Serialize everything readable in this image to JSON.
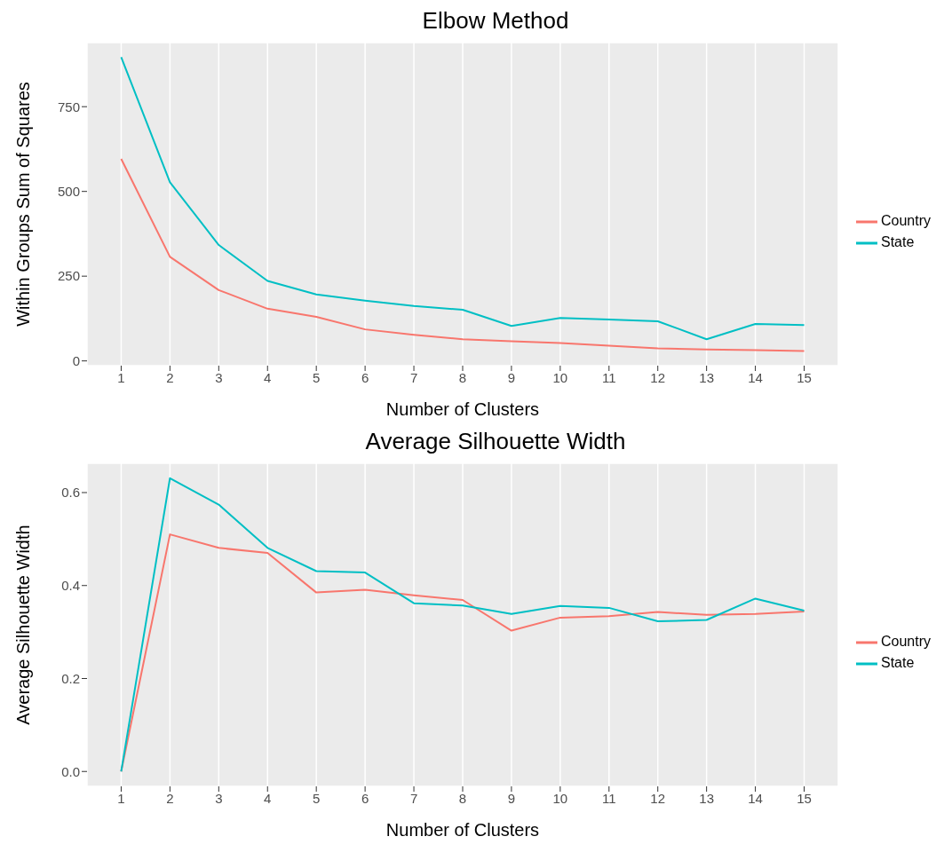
{
  "chart_data": [
    {
      "type": "line",
      "title": "Elbow Method",
      "xlabel": "Number of Clusters",
      "ylabel": "Within Groups Sum of Squares",
      "x": [
        1,
        2,
        3,
        4,
        5,
        6,
        7,
        8,
        9,
        10,
        11,
        12,
        13,
        14,
        15
      ],
      "xlim": [
        0.3,
        15.7
      ],
      "xticks": [
        1,
        2,
        3,
        4,
        5,
        6,
        7,
        8,
        9,
        10,
        11,
        12,
        13,
        14,
        15
      ],
      "ylim": [
        -14,
        939
      ],
      "yticks": [
        0,
        250,
        500,
        750
      ],
      "grid": true,
      "legend": "right",
      "series": [
        {
          "name": "Country",
          "color": "#f8766d",
          "values": [
            596,
            307,
            209,
            154,
            130,
            93,
            77,
            64,
            58,
            53,
            45,
            37,
            34,
            32,
            29
          ]
        },
        {
          "name": "State",
          "color": "#00bfc4",
          "values": [
            896,
            527,
            342,
            236,
            196,
            178,
            162,
            151,
            103,
            127,
            122,
            117,
            64,
            109,
            106
          ]
        }
      ]
    },
    {
      "type": "line",
      "title": "Average Silhouette Width",
      "xlabel": "Number of Clusters",
      "ylabel": "Average Silhouette Width",
      "x": [
        1,
        2,
        3,
        4,
        5,
        6,
        7,
        8,
        9,
        10,
        11,
        12,
        13,
        14,
        15
      ],
      "xlim": [
        0.3,
        15.7
      ],
      "xticks": [
        1,
        2,
        3,
        4,
        5,
        6,
        7,
        8,
        9,
        10,
        11,
        12,
        13,
        14,
        15
      ],
      "ylim": [
        -0.032,
        0.663
      ],
      "yticks": [
        {
          "value": 0,
          "label": "0.0"
        },
        {
          "value": 0.2,
          "label": "0.2"
        },
        {
          "value": 0.4,
          "label": "0.4"
        },
        {
          "value": 0.6,
          "label": "0.6"
        }
      ],
      "grid": true,
      "legend": "right",
      "series": [
        {
          "name": "Country",
          "color": "#f8766d",
          "values": [
            0,
            0.51,
            0.481,
            0.47,
            0.385,
            0.391,
            0.379,
            0.369,
            0.303,
            0.331,
            0.334,
            0.343,
            0.337,
            0.339,
            0.344
          ]
        },
        {
          "name": "State",
          "color": "#00bfc4",
          "values": [
            0,
            0.631,
            0.574,
            0.481,
            0.431,
            0.428,
            0.362,
            0.357,
            0.339,
            0.356,
            0.352,
            0.323,
            0.326,
            0.372,
            0.346
          ]
        }
      ]
    }
  ]
}
